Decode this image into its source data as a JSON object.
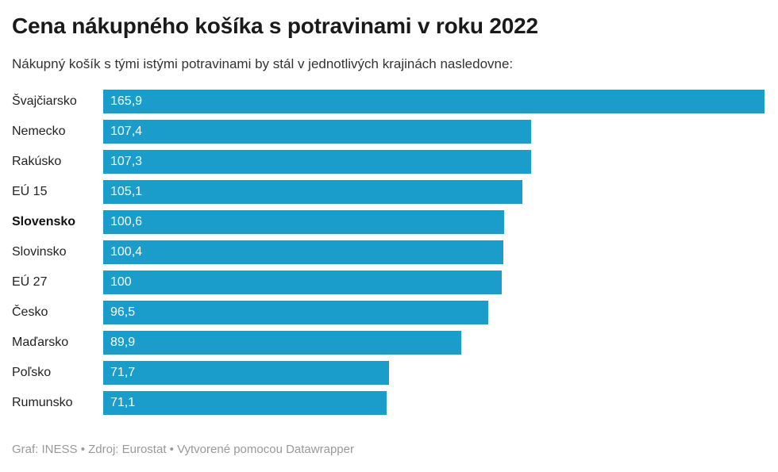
{
  "header": {
    "title": "Cena nákupného košíka s potravinami v roku 2022",
    "subtitle": "Nákupný košík s tými istými potravinami by stál v jednotlivých krajinách nasledovne:"
  },
  "chart_data": {
    "type": "bar",
    "orientation": "horizontal",
    "title": "Cena nákupného košíka s potravinami v roku 2022",
    "categories": [
      "Švajčiarsko",
      "Nemecko",
      "Rakúsko",
      "EÚ 15",
      "Slovensko",
      "Slovinsko",
      "EÚ 27",
      "Česko",
      "Maďarsko",
      "Poľsko",
      "Rumunsko"
    ],
    "values": [
      165.9,
      107.4,
      107.3,
      105.1,
      100.6,
      100.4,
      100,
      96.5,
      89.9,
      71.7,
      71.1
    ],
    "value_labels": [
      "165,9",
      "107,4",
      "107,3",
      "105,1",
      "100,6",
      "100,4",
      "100",
      "96,5",
      "89,9",
      "71,7",
      "71,1"
    ],
    "highlighted_category": "Slovensko",
    "xlim": [
      0,
      165.9
    ],
    "grid": false,
    "legend": false,
    "bar_color": "#1b9dcc",
    "value_label_color": "#ffffff"
  },
  "footer": {
    "text": "Graf: INESS • Zdroj: Eurostat • Vytvorené pomocou Datawrapper"
  }
}
